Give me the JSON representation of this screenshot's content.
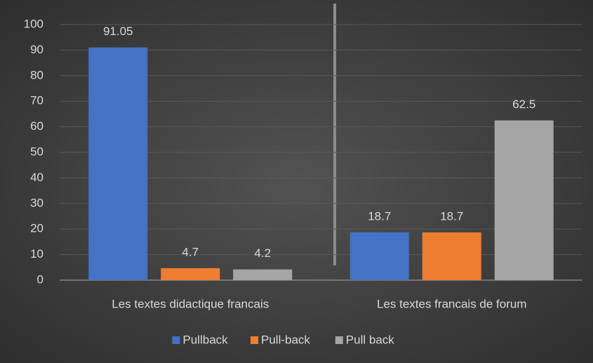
{
  "chart_data": {
    "type": "bar",
    "categories": [
      "Les textes didactique francais",
      "Les textes francais de forum"
    ],
    "series": [
      {
        "name": "Pullback",
        "color": "#4472c4",
        "values": [
          91.05,
          18.7
        ]
      },
      {
        "name": "Pull-back",
        "color": "#ed7d31",
        "values": [
          4.7,
          18.7
        ]
      },
      {
        "name": "Pull back",
        "color": "#a5a5a5",
        "values": [
          4.2,
          62.5
        ]
      }
    ],
    "ylim": [
      0,
      100
    ],
    "yticks": [
      0,
      10,
      20,
      30,
      40,
      50,
      60,
      70,
      80,
      90,
      100
    ],
    "grid": true,
    "legend": "bottom"
  }
}
